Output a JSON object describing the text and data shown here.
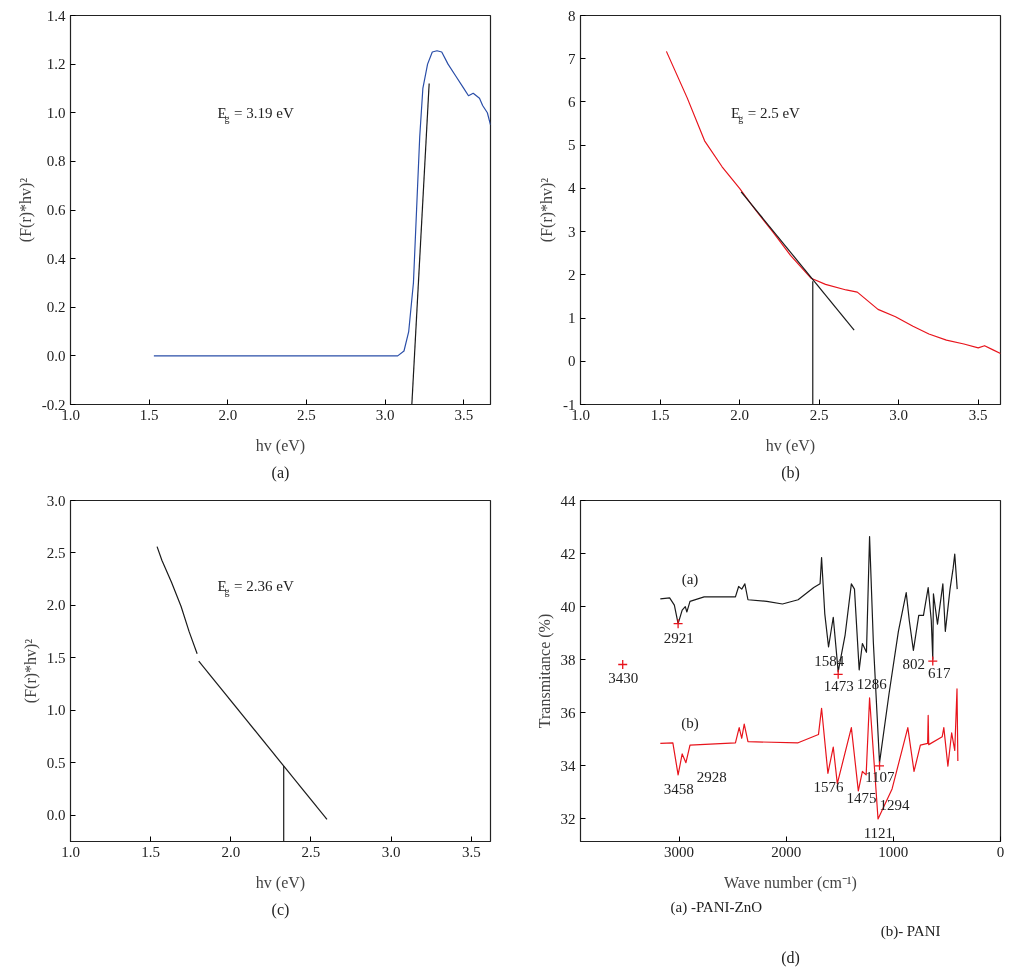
{
  "chart_data": [
    {
      "type": "line",
      "title": "(a)",
      "xlabel": "hv (eV)",
      "ylabel": "(F(r)*hv)²",
      "xlim": [
        1.0,
        3.67
      ],
      "ylim": [
        -0.2,
        1.4
      ],
      "xticks": [
        {
          "value": 1,
          "label": "1.0"
        },
        1.5,
        {
          "value": 2,
          "label": "2.0"
        },
        2.5,
        {
          "value": 3,
          "label": "3.0"
        },
        3.5
      ],
      "yticks": [
        -0.2,
        {
          "value": 0,
          "label": "0.0"
        },
        0.2,
        0.4,
        0.6,
        0.8,
        {
          "value": 1,
          "label": "1.0"
        },
        1.2,
        1.4
      ],
      "series": [
        {
          "color": "#2a4ea8",
          "x": [
            1.53,
            2.0,
            2.5,
            3.0,
            3.08,
            3.12,
            3.15,
            3.18,
            3.2,
            3.22,
            3.24,
            3.27,
            3.3,
            3.33,
            3.36,
            3.4,
            3.45,
            3.5,
            3.53,
            3.56,
            3.6,
            3.62,
            3.65,
            3.67
          ],
          "values": [
            0,
            0,
            0,
            0,
            0,
            0.02,
            0.1,
            0.3,
            0.6,
            0.9,
            1.1,
            1.2,
            1.25,
            1.255,
            1.25,
            1.2,
            1.15,
            1.1,
            1.07,
            1.08,
            1.06,
            1.03,
            1.0,
            0.95
          ]
        },
        {
          "color": "#1a1a1a",
          "x": [
            3.17,
            3.28
          ],
          "values": [
            -0.2,
            1.12
          ]
        }
      ],
      "annotations": [
        "E$_{g}$ = 3.19 eV"
      ]
    },
    {
      "type": "line",
      "title": "(b)",
      "xlabel": "hv (eV)",
      "ylabel": "(F(r)*hv)²",
      "xlim": [
        1.0,
        3.64
      ],
      "ylim": [
        -1,
        8
      ],
      "xticks": [
        {
          "value": 1,
          "label": "1.0"
        },
        1.5,
        {
          "value": 2,
          "label": "2.0"
        },
        2.5,
        {
          "value": 3,
          "label": "3.0"
        },
        3.5
      ],
      "yticks": [
        -1,
        0,
        1,
        2,
        3,
        4,
        5,
        6,
        7,
        8
      ],
      "series": [
        {
          "color": "#e8141c",
          "x": [
            1.54,
            1.67,
            1.78,
            1.89,
            2.0,
            2.1,
            2.21,
            2.32,
            2.45,
            2.54,
            2.67,
            2.74,
            2.87,
            2.98,
            3.09,
            3.19,
            3.3,
            3.41,
            3.5,
            3.54,
            3.59,
            3.64
          ],
          "values": [
            7.17,
            6.1,
            5.1,
            4.5,
            4.0,
            3.5,
            2.99,
            2.45,
            1.92,
            1.78,
            1.65,
            1.6,
            1.2,
            1.03,
            0.81,
            0.63,
            0.49,
            0.4,
            0.31,
            0.36,
            0.27,
            0.18
          ]
        },
        {
          "color": "#1a1a1a",
          "x": [
            2.01,
            2.72
          ],
          "values": [
            3.92,
            0.72
          ]
        },
        {
          "color": "#1a1a1a",
          "x": [
            2.46,
            2.46
          ],
          "values": [
            -1,
            1.85
          ]
        }
      ],
      "annotations": [
        "E$_{g}$ = 2.5 eV"
      ]
    },
    {
      "type": "line",
      "title": "(c)",
      "xlabel": "hv (eV)",
      "ylabel": "(F(r)*hv)²",
      "xlim": [
        1.0,
        3.62
      ],
      "ylim": [
        -0.25,
        3.0
      ],
      "xticks": [
        {
          "value": 1,
          "label": "1.0"
        },
        1.5,
        {
          "value": 2,
          "label": "2.0"
        },
        2.5,
        {
          "value": 3,
          "label": "3.0"
        },
        3.5
      ],
      "yticks": [
        {
          "value": 0,
          "label": "0.0"
        },
        0.5,
        {
          "value": 1,
          "label": "1.0"
        },
        1.5,
        {
          "value": 2,
          "label": "2.0"
        },
        2.5,
        {
          "value": 3,
          "label": "3.0"
        }
      ],
      "series": [
        {
          "color": "#1a1a1a",
          "x": [
            1.54,
            1.57,
            1.63,
            1.69,
            1.74,
            1.79
          ],
          "values": [
            2.56,
            2.43,
            2.22,
            1.99,
            1.75,
            1.54
          ]
        },
        {
          "color": "#1a1a1a",
          "x": [
            1.8,
            2.6
          ],
          "values": [
            1.47,
            -0.04
          ]
        },
        {
          "color": "#1a1a1a",
          "x": [
            2.33,
            2.33
          ],
          "values": [
            -0.25,
            0.47
          ]
        }
      ],
      "annotations": [
        "E$_{g}$ = 2.36 eV"
      ]
    },
    {
      "type": "line",
      "title": "(d)",
      "xlabel": "Wave number (cm⁻¹)",
      "ylabel": "Transmitance (%)",
      "xlim": [
        3920,
        0
      ],
      "ylim": [
        31.15,
        44
      ],
      "xticks": [
        3000,
        2000,
        1000,
        0
      ],
      "yticks": [
        32,
        34,
        36,
        38,
        40,
        42,
        44
      ],
      "series": [
        {
          "name": "(a)",
          "color": "#1a1a1a",
          "x": [
            3175,
            3088,
            3044,
            3009,
            2971,
            2942,
            2927,
            2898,
            2766,
            2474,
            2444,
            2415,
            2386,
            2357,
            2181,
            2035,
            1889,
            1743,
            1684,
            1670,
            1640,
            1605,
            1561,
            1515,
            1450,
            1392,
            1363,
            1319,
            1289,
            1251,
            1222,
            1187,
            1129,
            1041,
            953,
            880,
            851,
            813,
            763,
            719,
            675,
            646,
            632,
            626,
            588,
            538,
            515,
            471,
            442,
            427,
            404
          ],
          "values": [
            40.29,
            40.33,
            40.06,
            39.36,
            39.87,
            40.0,
            39.8,
            40.2,
            40.37,
            40.37,
            40.76,
            40.66,
            40.86,
            40.26,
            40.2,
            40.1,
            40.26,
            40.72,
            40.86,
            41.85,
            39.73,
            38.48,
            39.6,
            37.55,
            38.94,
            40.86,
            40.66,
            37.62,
            38.61,
            38.28,
            42.64,
            38.68,
            34.12,
            36.7,
            39.07,
            40.53,
            39.47,
            38.35,
            39.67,
            39.67,
            40.72,
            39.47,
            38.02,
            40.48,
            39.34,
            40.86,
            39.07,
            40.66,
            41.45,
            41.98,
            40.66
          ]
        },
        {
          "name": "(b)",
          "color": "#e8141c",
          "x": [
            3175,
            3058,
            3009,
            2971,
            2936,
            2898,
            2474,
            2439,
            2415,
            2392,
            2357,
            1889,
            1699,
            1670,
            1611,
            1561,
            1523,
            1392,
            1327,
            1289,
            1254,
            1222,
            1143,
            1012,
            865,
            807,
            748,
            680,
            675,
            670,
            544,
            529,
            491,
            456,
            427,
            406,
            398
          ],
          "values": [
            34.85,
            34.87,
            33.66,
            34.45,
            34.12,
            34.78,
            34.87,
            35.44,
            35.04,
            35.57,
            34.91,
            34.87,
            35.18,
            36.17,
            33.72,
            34.71,
            33.33,
            35.44,
            33.06,
            33.79,
            33.66,
            36.56,
            32.0,
            33.13,
            35.44,
            33.79,
            34.78,
            34.85,
            35.9,
            34.8,
            35.1,
            35.44,
            33.99,
            35.24,
            34.58,
            36.9,
            34.18
          ]
        },
        {
          "type": "scatter",
          "marker": "cross",
          "color": "#e8141c",
          "x": [
            3009,
            3526,
            1515,
            632,
            1129
          ],
          "values": [
            39.36,
            37.82,
            37.45,
            37.95,
            34.0
          ]
        }
      ],
      "annotations": [
        {
          "text": "2921",
          "x": 3009,
          "y": 39.36
        },
        {
          "text": "3430",
          "x": 3526,
          "y": 37.82
        },
        {
          "text": "1584",
          "x": 1605,
          "y": 38.48
        },
        {
          "text": "1473",
          "x": 1515,
          "y": 37.55
        },
        {
          "text": "1286",
          "x": 1319,
          "y": 37.62
        },
        {
          "text": "802",
          "x": 813,
          "y": 38.35
        },
        {
          "text": "617",
          "x": 632,
          "y": 38.02
        },
        {
          "text": "1107",
          "x": 1129,
          "y": 34.12
        },
        {
          "text": "3458",
          "x": 3009,
          "y": 33.66
        },
        {
          "text": "2928",
          "x": 2936,
          "y": 34.12
        },
        {
          "text": "1576",
          "x": 1611,
          "y": 33.72
        },
        {
          "text": "1475",
          "x": 1523,
          "y": 33.33
        },
        {
          "text": "1294",
          "x": 1327,
          "y": 33.06
        },
        {
          "text": "1121",
          "x": 1143,
          "y": 32.0
        },
        "(a) -PANI-ZnO",
        "(b)- PANI"
      ]
    }
  ]
}
